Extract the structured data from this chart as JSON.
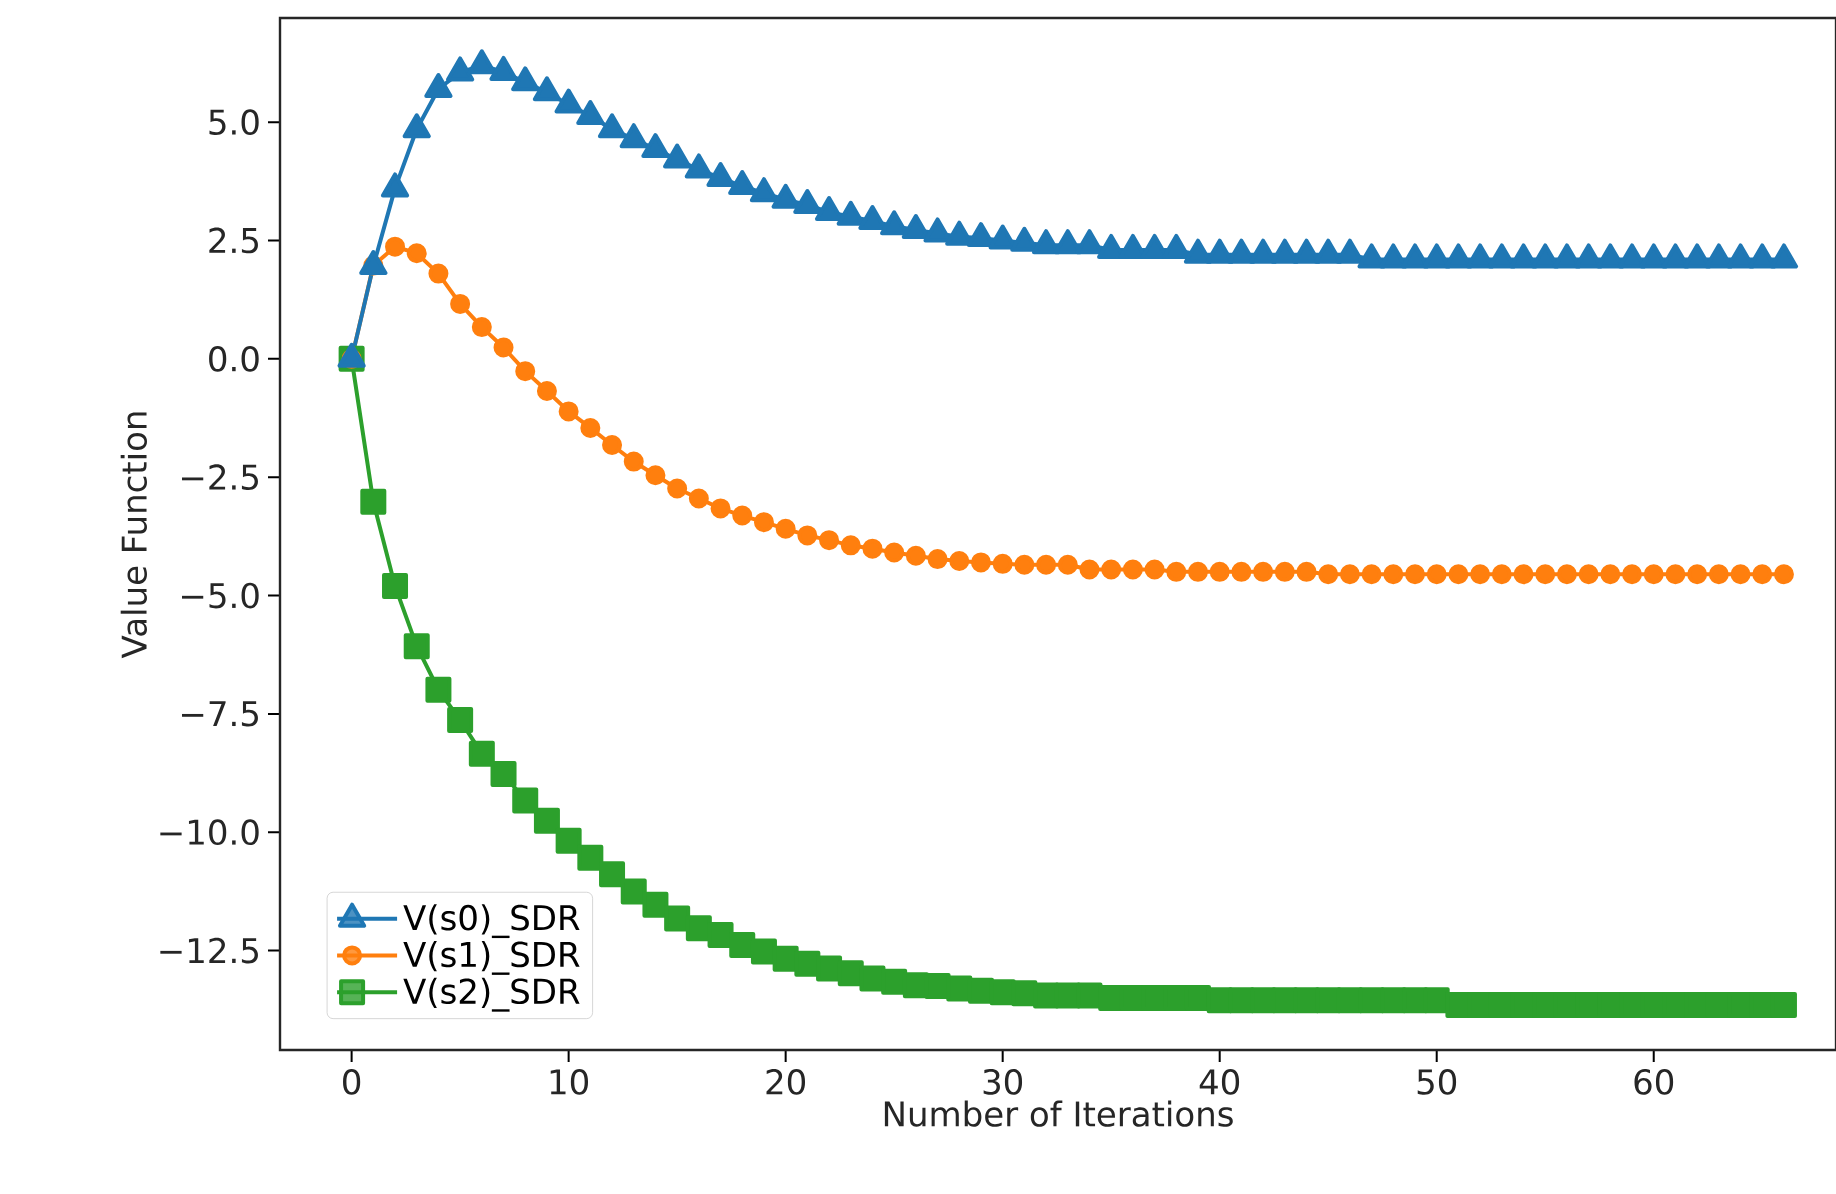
{
  "chart_data": {
    "type": "line",
    "xlabel": "Number of Iterations",
    "ylabel": "Value Function",
    "x": [
      0,
      1,
      2,
      3,
      4,
      5,
      6,
      7,
      8,
      9,
      10,
      11,
      12,
      13,
      14,
      15,
      16,
      17,
      18,
      19,
      20,
      21,
      22,
      23,
      24,
      25,
      26,
      27,
      28,
      29,
      30,
      31,
      32,
      33,
      34,
      35,
      36,
      37,
      38,
      39,
      40,
      41,
      42,
      43,
      44,
      45,
      46,
      47,
      48,
      49,
      50,
      51,
      52,
      53,
      54,
      55,
      56,
      57,
      58,
      59,
      60,
      61,
      62,
      63,
      64,
      65,
      66
    ],
    "series": [
      {
        "name": "V(s0)_SDR",
        "color": "#1f77b4",
        "marker": "triangle",
        "values": [
          0,
          1.96,
          3.6,
          4.85,
          5.7,
          6.05,
          6.2,
          6.06,
          5.84,
          5.63,
          5.37,
          5.13,
          4.85,
          4.64,
          4.43,
          4.21,
          4.0,
          3.82,
          3.65,
          3.5,
          3.36,
          3.25,
          3.1,
          3.0,
          2.91,
          2.8,
          2.72,
          2.65,
          2.58,
          2.55,
          2.5,
          2.45,
          2.4,
          2.4,
          2.4,
          2.3,
          2.3,
          2.3,
          2.3,
          2.2,
          2.2,
          2.2,
          2.2,
          2.2,
          2.2,
          2.2,
          2.2,
          2.1,
          2.1,
          2.1,
          2.1,
          2.1,
          2.1,
          2.1,
          2.1,
          2.1,
          2.1,
          2.1,
          2.1,
          2.1,
          2.1,
          2.1,
          2.1,
          2.1,
          2.1,
          2.1,
          2.1
        ]
      },
      {
        "name": "V(s1)_SDR",
        "color": "#ff7f0e",
        "marker": "circle",
        "values": [
          0,
          1.97,
          2.37,
          2.23,
          1.8,
          1.16,
          0.67,
          0.24,
          -0.26,
          -0.68,
          -1.11,
          -1.46,
          -1.82,
          -2.17,
          -2.46,
          -2.74,
          -2.95,
          -3.16,
          -3.31,
          -3.45,
          -3.59,
          -3.73,
          -3.83,
          -3.94,
          -4.01,
          -4.09,
          -4.16,
          -4.23,
          -4.27,
          -4.3,
          -4.33,
          -4.35,
          -4.35,
          -4.35,
          -4.45,
          -4.45,
          -4.45,
          -4.45,
          -4.5,
          -4.5,
          -4.5,
          -4.5,
          -4.5,
          -4.5,
          -4.5,
          -4.55,
          -4.55,
          -4.55,
          -4.55,
          -4.55,
          -4.55,
          -4.55,
          -4.55,
          -4.55,
          -4.55,
          -4.55,
          -4.55,
          -4.55,
          -4.55,
          -4.55,
          -4.55,
          -4.55,
          -4.55,
          -4.55,
          -4.55,
          -4.55,
          -4.55
        ]
      },
      {
        "name": "V(s2)_SDR",
        "color": "#2ca02c",
        "marker": "square",
        "values": [
          0,
          -3.02,
          -4.8,
          -6.07,
          -6.99,
          -7.63,
          -8.34,
          -8.77,
          -9.33,
          -9.76,
          -10.18,
          -10.54,
          -10.89,
          -11.25,
          -11.53,
          -11.82,
          -12.03,
          -12.17,
          -12.38,
          -12.52,
          -12.67,
          -12.78,
          -12.88,
          -12.98,
          -13.09,
          -13.16,
          -13.23,
          -13.25,
          -13.3,
          -13.35,
          -13.38,
          -13.4,
          -13.45,
          -13.45,
          -13.45,
          -13.5,
          -13.5,
          -13.5,
          -13.5,
          -13.5,
          -13.55,
          -13.55,
          -13.55,
          -13.55,
          -13.55,
          -13.55,
          -13.55,
          -13.55,
          -13.55,
          -13.55,
          -13.55,
          -13.65,
          -13.65,
          -13.65,
          -13.65,
          -13.65,
          -13.65,
          -13.65,
          -13.65,
          -13.65,
          -13.65,
          -13.65,
          -13.65,
          -13.65,
          -13.65,
          -13.65,
          -13.65
        ]
      }
    ],
    "xlim": [
      -3.3,
      68.4
    ],
    "ylim": [
      -14.6,
      7.2
    ],
    "xticks": [
      0,
      10,
      20,
      30,
      40,
      50,
      60
    ],
    "yticks": [
      {
        "value": -12.5,
        "label": "−12.5"
      },
      {
        "value": -10.0,
        "label": "−10.0"
      },
      {
        "value": -7.5,
        "label": "−7.5"
      },
      {
        "value": -5.0,
        "label": "−5.0"
      },
      {
        "value": -2.5,
        "label": "−2.5"
      },
      {
        "value": 0.0,
        "label": "0.0"
      },
      {
        "value": 2.5,
        "label": "2.5"
      },
      {
        "value": 5.0,
        "label": "5.0"
      }
    ],
    "legend": "bottom left",
    "line_style": "solid"
  }
}
